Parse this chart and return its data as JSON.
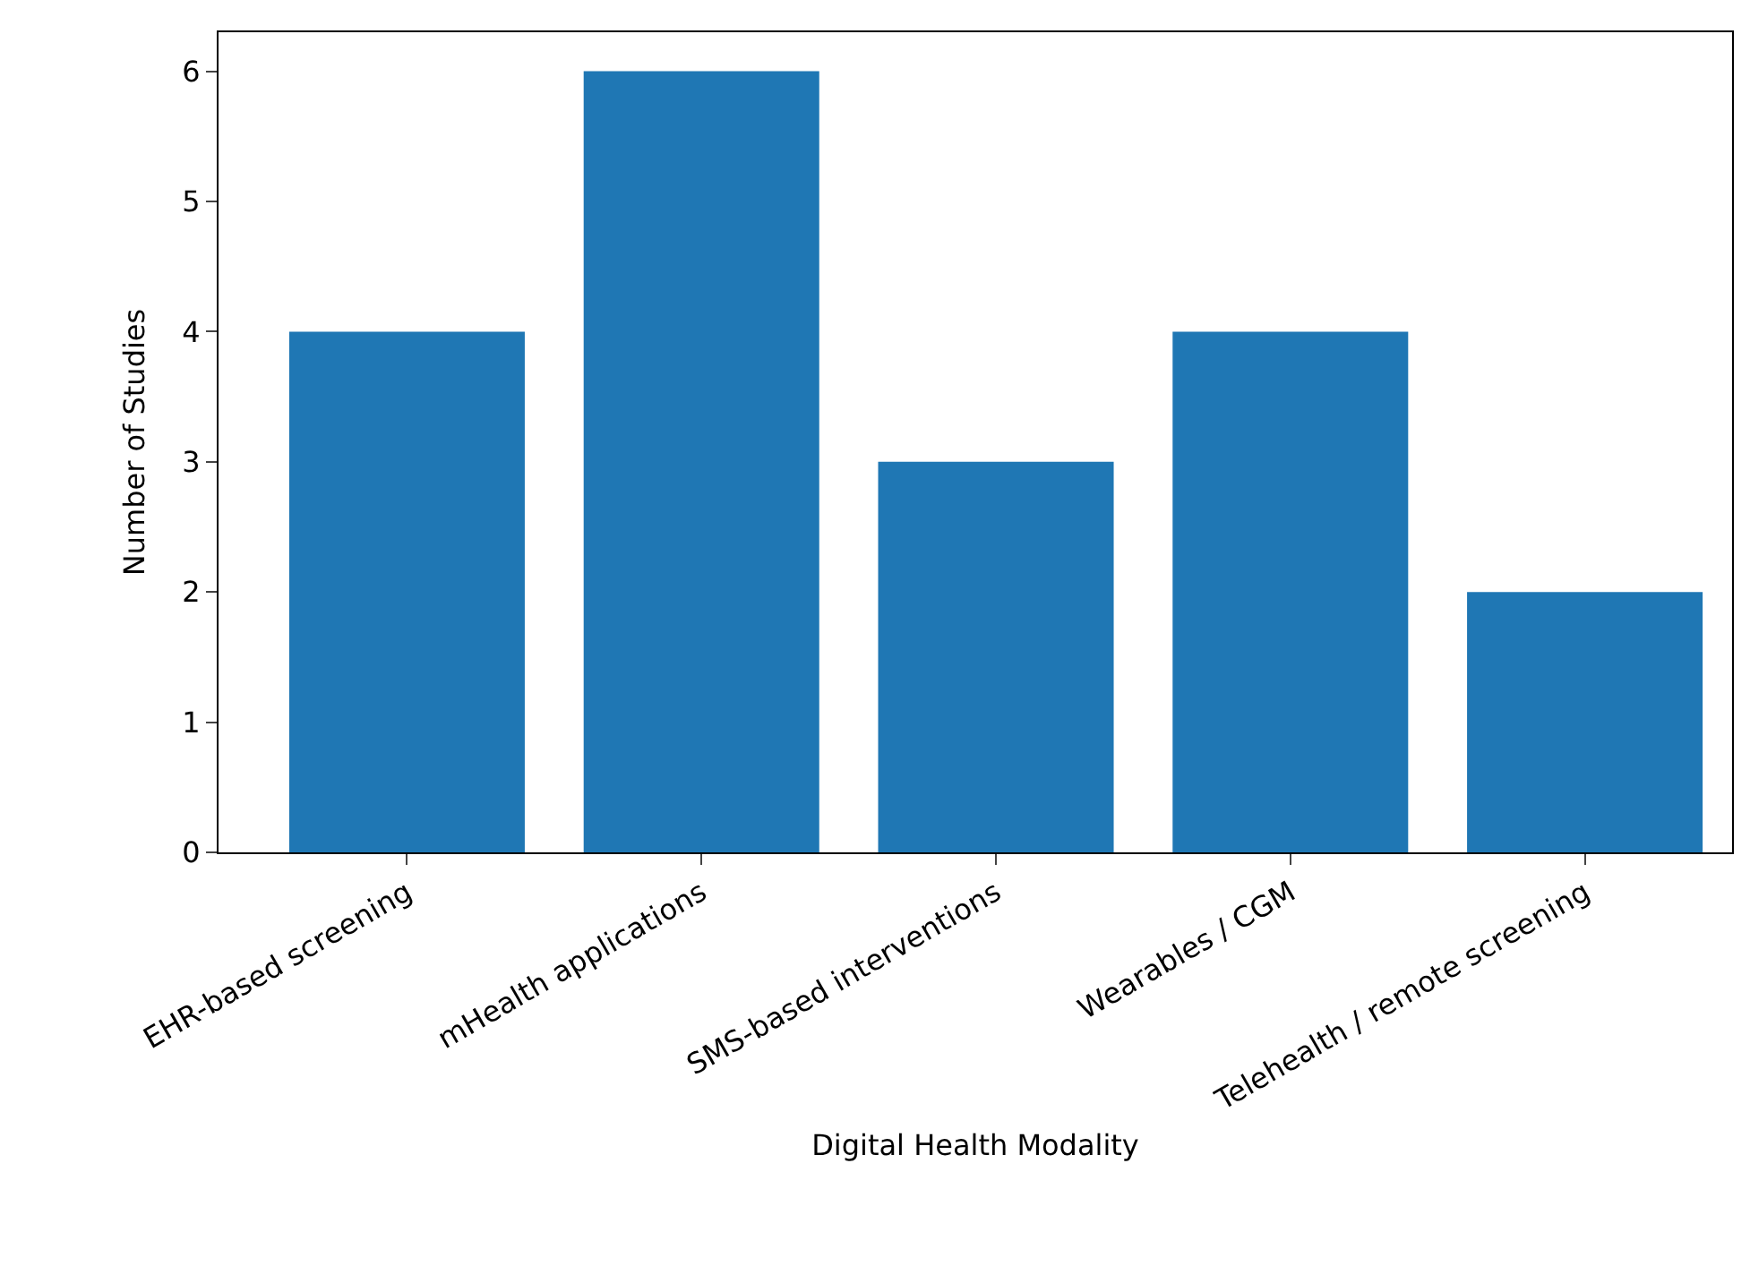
{
  "chart_data": {
    "type": "bar",
    "xlabel": "Digital Health Modality",
    "ylabel": "Number of Studies",
    "categories": [
      "EHR-based screening",
      "mHealth applications",
      "SMS-based interventions",
      "Wearables / CGM",
      "Telehealth / remote screening"
    ],
    "values": [
      4,
      6,
      3,
      4,
      2
    ],
    "color": "#1f77b4",
    "ylim": [
      0,
      6.3
    ],
    "yticks": [
      0,
      1,
      2,
      3,
      4,
      5,
      6
    ],
    "grid": false
  }
}
